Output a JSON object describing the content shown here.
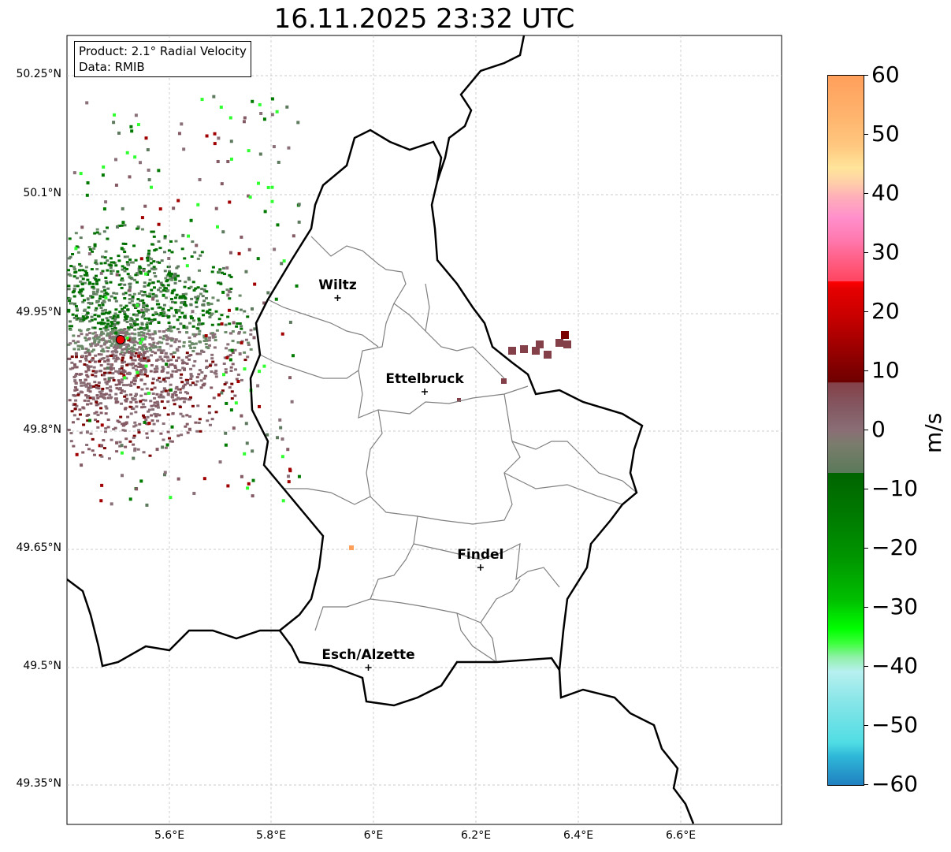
{
  "title": "16.11.2025 23:32 UTC",
  "info": {
    "product": "Product: 2.1° Radial Velocity",
    "data": "Data: RMIB"
  },
  "y_ticks": [
    "50.25°N",
    "50.1°N",
    "49.95°N",
    "49.8°N",
    "49.65°N",
    "49.5°N",
    "49.35°N"
  ],
  "x_ticks": [
    "5.6°E",
    "5.8°E",
    "6°E",
    "6.2°E",
    "6.4°E",
    "6.6°E"
  ],
  "cities": [
    {
      "name": "Wiltz",
      "lon": 5.93,
      "lat": 49.969
    },
    {
      "name": "Ettelbruck",
      "lon": 6.1,
      "lat": 49.85
    },
    {
      "name": "Findel",
      "lon": 6.209,
      "lat": 49.627
    },
    {
      "name": "Esch/Alzette",
      "lon": 5.99,
      "lat": 49.5
    }
  ],
  "radar_site": {
    "lon": 5.506,
    "lat": 49.916
  },
  "colorbar": {
    "label": "m/s",
    "min": -60,
    "max": 60,
    "ticks": [
      "60",
      "50",
      "40",
      "30",
      "20",
      "10",
      "0",
      "−10",
      "−20",
      "−30",
      "−40",
      "−50",
      "−60"
    ]
  }
}
